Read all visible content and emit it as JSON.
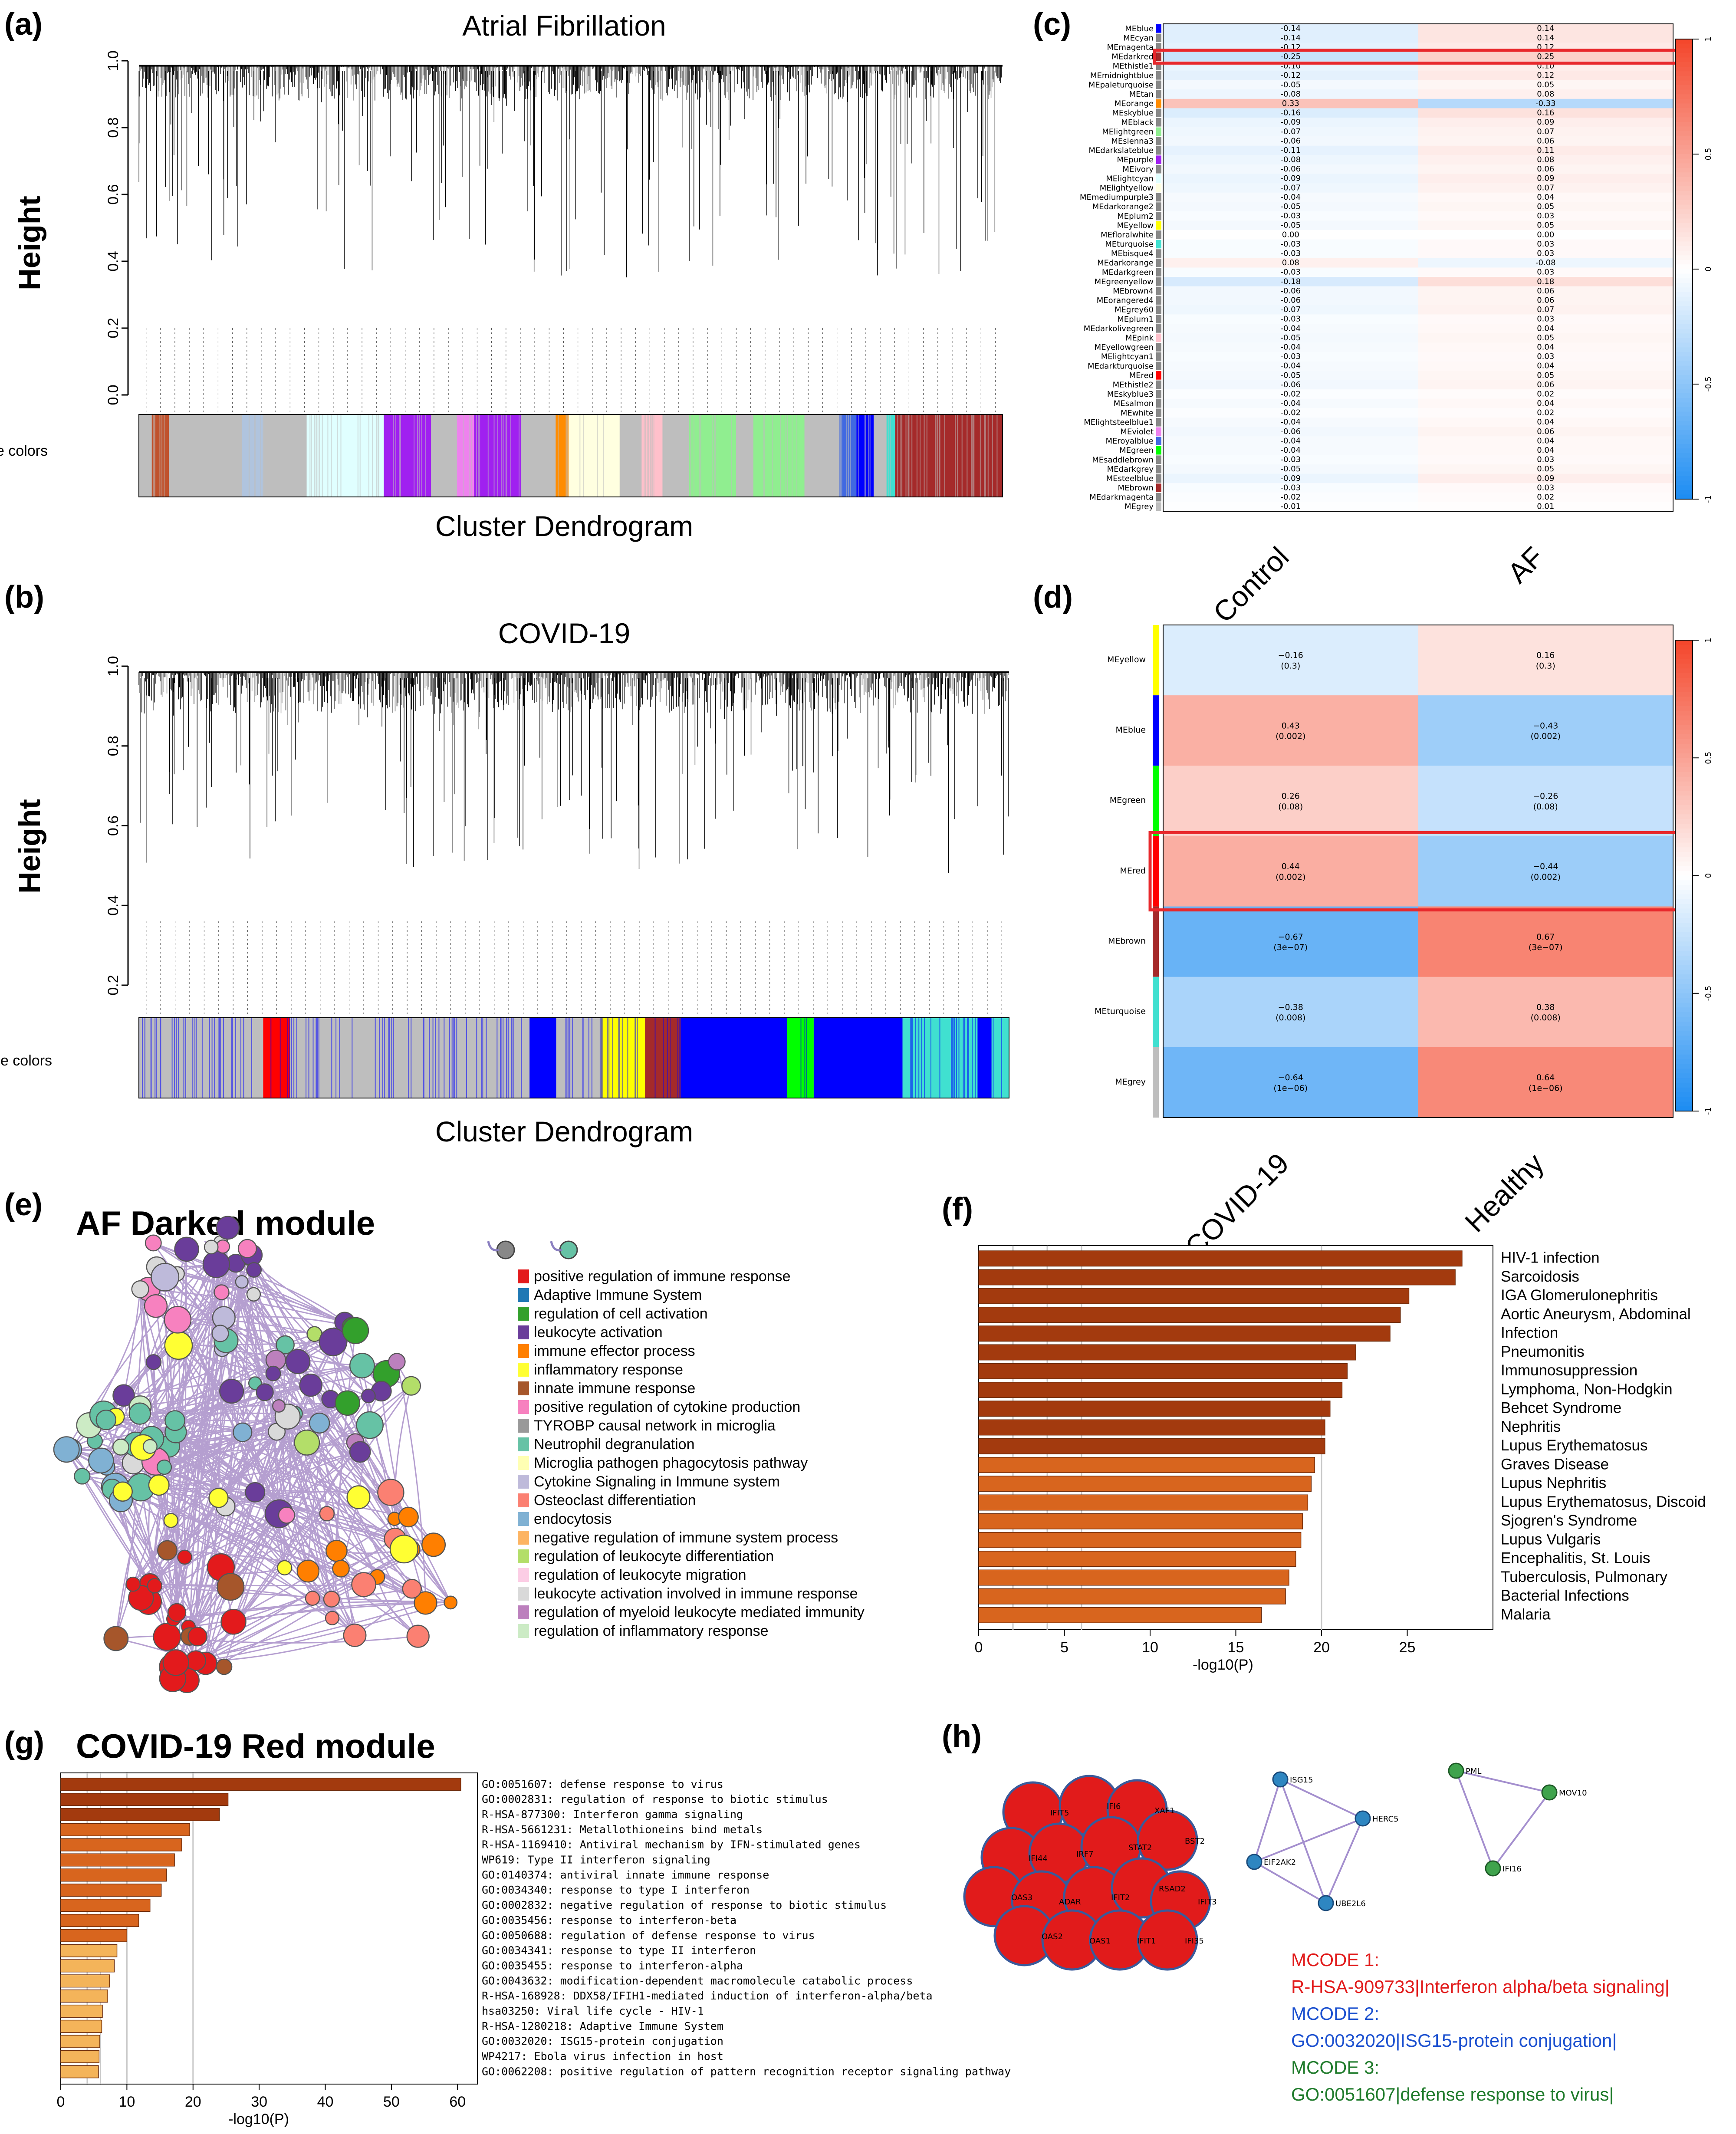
{
  "panels": {
    "a": {
      "label": "(a)",
      "title": "Atrial Fibrillation",
      "ylabel": "Height",
      "xlabel": "Cluster  Dendrogram",
      "colors_label": "Module colors"
    },
    "b": {
      "label": "(b)",
      "title": "COVID-19",
      "ylabel": "Height",
      "xlabel": "Cluster  Dendrogram",
      "colors_label": "Module colors"
    },
    "c": {
      "label": "(c)"
    },
    "d": {
      "label": "(d)"
    },
    "e": {
      "label": "(e)",
      "title": "AF Darked module"
    },
    "f": {
      "label": "(f)"
    },
    "g": {
      "label": "(g)",
      "title": "COVID-19 Red module"
    },
    "h": {
      "label": "(h)"
    }
  },
  "colors": {
    "pos": "#F4472C",
    "neg": "#1E8DF2",
    "bar_dark": "#A33A0E",
    "bar_mid": "#D8651E",
    "bar_light": "#F4B45A",
    "net_edge": "#5A2A96",
    "mcode_red": "#E11B1B",
    "mcode_blue": "#1A4FCF",
    "mcode_green": "#1E7A2A"
  },
  "chart_data": [
    {
      "id": "a",
      "type": "dendrogram",
      "title": "Atrial Fibrillation",
      "ylabel": "Height",
      "xlabel": "Cluster  Dendrogram",
      "yticks": [
        "0.0",
        "0.2",
        "0.4",
        "0.6",
        "0.8",
        "1.0"
      ],
      "ylim": [
        0,
        1.0
      ],
      "module_colors": [
        "gray",
        "sienna",
        "gray",
        "lightsteelblue",
        "gray",
        "lightcyan",
        "purple",
        "gray",
        "violet",
        "purple",
        "gray",
        "orange",
        "lightyellow",
        "gray",
        "pink",
        "gray",
        "lightgreen",
        "gray",
        "lightgreen",
        "gray",
        "royalblue",
        "blue",
        "gray",
        "turquoise",
        "darkred"
      ]
    },
    {
      "id": "b",
      "type": "dendrogram",
      "title": "COVID-19",
      "ylabel": "Height",
      "xlabel": "Cluster  Dendrogram",
      "yticks": [
        "0.2",
        "0.4",
        "0.6",
        "0.8",
        "1.0"
      ],
      "ylim": [
        0.2,
        1.0
      ],
      "module_colors": [
        "grey",
        "red",
        "grey",
        "blue",
        "grey",
        "yellow",
        "brown",
        "blue",
        "green",
        "blue",
        "turquoise",
        "blue",
        "turquoise"
      ]
    },
    {
      "id": "c",
      "type": "heatmap",
      "columns": [
        "Control",
        "AF"
      ],
      "colorbar_ticks": [
        "1",
        "0.5",
        "0",
        "-0.5",
        "-1"
      ],
      "highlight": "MEdarkred",
      "rows": [
        "MEblue",
        "MEcyan",
        "MEmagenta",
        "MEdarkred",
        "MEthistle1",
        "MEmidnightblue",
        "MEpaleturquoise",
        "MEtan",
        "MEorange",
        "MEskyblue",
        "MEblack",
        "MElightgreen",
        "MEsienna3",
        "MEdarkslateblue",
        "MEpurple",
        "MEivory",
        "MElightcyan",
        "MElightyellow",
        "MEmediumpurple3",
        "MEdarkorange2",
        "MEplum2",
        "MEyellow",
        "MEfloralwhite",
        "MEturquoise",
        "MEbisque4",
        "MEdarkorange",
        "MEdarkgreen",
        "MEgreenyellow",
        "MEbrown4",
        "MEorangered4",
        "MEgrey60",
        "MEplum1",
        "MEdarkolivegreen",
        "MEpink",
        "MEyellowgreen",
        "MElightcyan1",
        "MEdarkturquoise",
        "MEred",
        "MEthistle2",
        "MEskyblue3",
        "MEsalmon",
        "MEwhite",
        "MElightsteelblue1",
        "MEviolet",
        "MEroyalblue",
        "MEgreen",
        "MEsaddlebrown",
        "MEdarkgrey",
        "MEsteelblue",
        "MEbrown",
        "MEdarkmagenta",
        "MEgrey"
      ],
      "values": [
        -0.14,
        -0.14,
        -0.12,
        -0.25,
        -0.1,
        -0.12,
        -0.05,
        -0.08,
        0.33,
        -0.16,
        -0.09,
        -0.07,
        -0.06,
        -0.11,
        -0.08,
        -0.06,
        -0.09,
        -0.07,
        -0.04,
        -0.05,
        -0.03,
        -0.05,
        0.0,
        -0.03,
        -0.03,
        0.08,
        -0.03,
        -0.18,
        -0.06,
        -0.06,
        -0.07,
        -0.03,
        -0.04,
        -0.05,
        -0.04,
        -0.03,
        -0.04,
        -0.05,
        -0.06,
        -0.02,
        -0.04,
        -0.02,
        -0.04,
        -0.06,
        -0.04,
        -0.04,
        -0.03,
        -0.05,
        -0.09,
        -0.03,
        -0.02,
        -0.01
      ]
    },
    {
      "id": "d",
      "type": "heatmap",
      "columns": [
        "COVID-19",
        "Healthy"
      ],
      "colorbar_ticks": [
        "1",
        "0.5",
        "0",
        "-0.5",
        "-1"
      ],
      "highlight": "MEred",
      "rows": [
        "MEyellow",
        "MEblue",
        "MEgreen",
        "MEred",
        "MEbrown",
        "MEturquoise",
        "MEgrey"
      ],
      "values": [
        [
          -0.16,
          0.16
        ],
        [
          0.43,
          -0.43
        ],
        [
          0.26,
          -0.26
        ],
        [
          0.44,
          -0.44
        ],
        [
          -0.67,
          0.67
        ],
        [
          -0.38,
          0.38
        ],
        [
          -0.64,
          0.64
        ]
      ],
      "labels": [
        [
          "−0.16",
          "(0.3)",
          "0.16",
          "(0.3)"
        ],
        [
          "0.43",
          "(0.002)",
          "−0.43",
          "(0.002)"
        ],
        [
          "0.26",
          "(0.08)",
          "−0.26",
          "(0.08)"
        ],
        [
          "0.44",
          "(0.002)",
          "−0.44",
          "(0.002)"
        ],
        [
          "−0.67",
          "(3e−07)",
          "0.67",
          "(3e−07)"
        ],
        [
          "−0.38",
          "(0.008)",
          "0.38",
          "(0.008)"
        ],
        [
          "−0.64",
          "(1e−06)",
          "0.64",
          "(1e−06)"
        ]
      ]
    },
    {
      "id": "e",
      "type": "network",
      "title": "AF Darked module",
      "legend": [
        "positive regulation of immune response",
        "Adaptive Immune System",
        "regulation of cell activation",
        "leukocyte activation",
        "immune effector process",
        "inflammatory response",
        "innate immune response",
        "positive regulation of cytokine production",
        "TYROBP causal network in microglia",
        "Neutrophil degranulation",
        "Microglia pathogen phagocytosis pathway",
        "Cytokine Signaling in Immune system",
        "Osteoclast differentiation",
        "endocytosis",
        "negative regulation of immune system process",
        "regulation of leukocyte differentiation",
        "regulation of leukocyte migration",
        "leukocyte activation involved in immune response",
        "regulation of myeloid leukocyte mediated immunity",
        "regulation of inflammatory response"
      ],
      "legend_colors": [
        "#E31A1C",
        "#1F78B4",
        "#33A02C",
        "#6A3D9A",
        "#FF7F00",
        "#FFFF33",
        "#A6562B",
        "#F781BF",
        "#999999",
        "#66C2A5",
        "#FFFFB3",
        "#BEBADA",
        "#FB8072",
        "#80B1D3",
        "#FDB462",
        "#B3DE69",
        "#FCCDE5",
        "#D9D9D9",
        "#BC80BD",
        "#CCEBC5"
      ]
    },
    {
      "id": "f",
      "type": "bar",
      "orientation": "horizontal",
      "xlabel": "-log10(P)",
      "xlim": [
        0,
        30
      ],
      "xticks": [
        "0",
        "5",
        "10",
        "15",
        "20",
        "25"
      ],
      "categories": [
        "HIV-1 infection",
        "Sarcoidosis",
        "IGA Glomerulonephritis",
        "Aortic Aneurysm, Abdominal",
        "Infection",
        "Pneumonitis",
        "Immunosuppression",
        "Lymphoma, Non-Hodgkin",
        "Behcet Syndrome",
        "Nephritis",
        "Lupus Erythematosus",
        "Graves Disease",
        "Lupus Nephritis",
        "Lupus Erythematosus, Discoid",
        "Sjogren's Syndrome",
        "Lupus Vulgaris",
        "Encephalitis, St. Louis",
        "Tuberculosis, Pulmonary",
        "Bacterial Infections",
        "Malaria"
      ],
      "values": [
        28.2,
        27.8,
        25.1,
        24.6,
        24.0,
        22.0,
        21.5,
        21.2,
        20.5,
        20.2,
        20.2,
        19.6,
        19.4,
        19.2,
        18.9,
        18.8,
        18.5,
        18.1,
        17.9,
        16.5
      ]
    },
    {
      "id": "g",
      "type": "bar",
      "orientation": "horizontal",
      "xlabel": "-log10(P)",
      "xlim": [
        0,
        63
      ],
      "xticks": [
        "0",
        "10",
        "20",
        "30",
        "40",
        "50",
        "60"
      ],
      "categories": [
        "GO:0051607: defense response to virus",
        "GO:0002831: regulation of response to biotic stimulus",
        "R-HSA-877300: Interferon gamma signaling",
        "R-HSA-5661231: Metallothioneins bind metals",
        "R-HSA-1169410: Antiviral mechanism by IFN-stimulated genes",
        "WP619: Type II interferon signaling",
        "GO:0140374: antiviral innate immune response",
        "GO:0034340: response to type I interferon",
        "GO:0002832: negative regulation of response to biotic stimulus",
        "GO:0035456: response to interferon-beta",
        "GO:0050688: regulation of defense response to virus",
        "GO:0034341: response to type II interferon",
        "GO:0035455: response to interferon-alpha",
        "GO:0043632: modification-dependent macromolecule catabolic process",
        "R-HSA-168928: DDX58/IFIH1-mediated induction of interferon-alpha/beta",
        "hsa03250: Viral life cycle - HIV-1",
        "R-HSA-1280218: Adaptive Immune System",
        "GO:0032020: ISG15-protein conjugation",
        "WP4217: Ebola virus infection in host",
        "GO:0062208: positive regulation of pattern recognition receptor signaling pathway"
      ],
      "values": [
        60.5,
        25.3,
        24.0,
        19.5,
        18.3,
        17.2,
        16.0,
        15.2,
        13.5,
        11.8,
        10.0,
        8.5,
        8.1,
        7.4,
        7.1,
        6.3,
        6.2,
        5.9,
        5.8,
        5.7
      ]
    },
    {
      "id": "h",
      "type": "network",
      "mcode1_genes": [
        "IFIT5",
        "IFI6",
        "XAF1",
        "IFI44",
        "IRF7",
        "STAT2",
        "BST2",
        "OAS3",
        "ADAR",
        "IFIT2",
        "RSAD2",
        "IFIT3",
        "OAS2",
        "OAS1",
        "IFIT1",
        "IFI35"
      ],
      "mcode2_genes": [
        "ISG15",
        "HERC5",
        "EIF2AK2",
        "UBE2L6"
      ],
      "mcode3_genes": [
        "PML",
        "MOV10",
        "IFI16"
      ],
      "mcode_labels": [
        "MCODE 1:",
        "R-HSA-909733|Interferon alpha/beta signaling|",
        "MCODE 2:",
        "GO:0032020|ISG15-protein conjugation|",
        "MCODE 3:",
        "GO:0051607|defense response to virus|"
      ]
    }
  ]
}
